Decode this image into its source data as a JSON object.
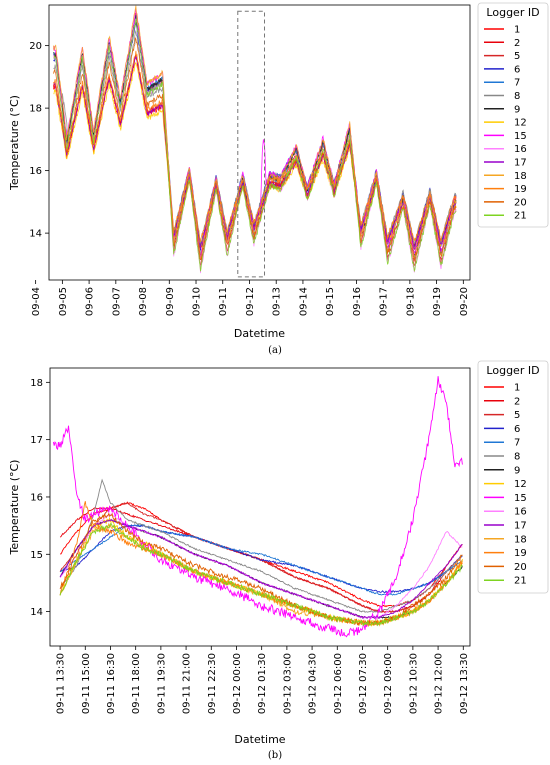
{
  "chart_data": [
    {
      "type": "line",
      "panel_label": "(a)",
      "xlabel": "Datetime",
      "ylabel": "Temperature (°C)",
      "legend_title": "Logger ID",
      "legend_position": "right",
      "grid": false,
      "x_ticks": [
        "09-04",
        "09-05",
        "09-06",
        "09-07",
        "09-08",
        "09-09",
        "09-10",
        "09-11",
        "09-12",
        "09-13",
        "09-14",
        "09-15",
        "09-16",
        "09-17",
        "09-18",
        "09-19",
        "09-20"
      ],
      "y_ticks": [
        14,
        16,
        18,
        20
      ],
      "xlim": [
        "09-04 12:00",
        "09-20 06:00"
      ],
      "ylim": [
        12.5,
        21.3
      ],
      "highlight_box": {
        "x_range": [
          "09-11 13:30",
          "09-12 13:30"
        ],
        "y_range": [
          12.6,
          21.1
        ],
        "style": "dashed"
      },
      "daily_extremes": {
        "dates": [
          "09-04 18:00",
          "09-05 04:00",
          "09-05 18:00",
          "09-06 04:00",
          "09-06 18:00",
          "09-07 04:00",
          "09-07 18:00",
          "09-08 04:00",
          "09-08 18:00",
          "09-09 04:00",
          "09-09 18:00",
          "09-10 04:00",
          "09-10 18:00",
          "09-11 04:00",
          "09-11 18:00",
          "09-12 04:00",
          "09-12 18:00",
          "09-13 04:00",
          "09-13 18:00",
          "09-14 04:00",
          "09-14 18:00",
          "09-15 04:00",
          "09-15 18:00",
          "09-16 04:00",
          "09-16 18:00",
          "09-17 04:00",
          "09-17 18:00",
          "09-18 04:00",
          "09-18 18:00",
          "09-19 04:00",
          "09-19 16:00"
        ],
        "values": [
          19.2,
          16.7,
          19.2,
          16.9,
          19.5,
          17.8,
          20.3,
          18.2,
          18.5,
          13.8,
          15.9,
          13.4,
          15.6,
          13.8,
          15.7,
          14.1,
          15.7,
          15.6,
          16.5,
          15.3,
          16.7,
          15.4,
          17.1,
          14.0,
          15.8,
          13.6,
          15.1,
          13.4,
          15.2,
          13.5,
          15.0
        ]
      },
      "series": [
        {
          "name": "1",
          "color": "#ff0000"
        },
        {
          "name": "2",
          "color": "#e8000b"
        },
        {
          "name": "5",
          "color": "#d62728"
        },
        {
          "name": "6",
          "color": "#2222cc"
        },
        {
          "name": "7",
          "color": "#1f77d4"
        },
        {
          "name": "8",
          "color": "#888888"
        },
        {
          "name": "9",
          "color": "#222222"
        },
        {
          "name": "12",
          "color": "#ffcc00"
        },
        {
          "name": "15",
          "color": "#ff00ff"
        },
        {
          "name": "16",
          "color": "#ff80ff"
        },
        {
          "name": "17",
          "color": "#9900cc"
        },
        {
          "name": "18",
          "color": "#f5a623"
        },
        {
          "name": "19",
          "color": "#ff7f0e"
        },
        {
          "name": "20",
          "color": "#e06000"
        },
        {
          "name": "21",
          "color": "#7ed321"
        }
      ]
    },
    {
      "type": "line",
      "panel_label": "(b)",
      "xlabel": "Datetime",
      "ylabel": "Temperature (°C)",
      "legend_title": "Logger ID",
      "legend_position": "right",
      "grid": false,
      "x_ticks": [
        "09-11 13:30",
        "09-11 15:00",
        "09-11 16:30",
        "09-11 18:00",
        "09-11 19:30",
        "09-11 21:00",
        "09-11 22:30",
        "09-12 00:00",
        "09-12 01:30",
        "09-12 03:00",
        "09-12 04:30",
        "09-12 06:00",
        "09-12 07:30",
        "09-12 09:00",
        "09-12 10:30",
        "09-12 12:00",
        "09-12 13:30"
      ],
      "y_ticks": [
        14,
        15,
        16,
        17,
        18
      ],
      "xlim_hours_from_0911_1330": [
        -0.6,
        24.4
      ],
      "ylim": [
        13.4,
        18.25
      ],
      "series": [
        {
          "name": "1",
          "color": "#ff0000",
          "hours": [
            0,
            1,
            2,
            3,
            4,
            5,
            6,
            8,
            10,
            12,
            14,
            16,
            18,
            19,
            20,
            21,
            22,
            23,
            24
          ],
          "values": [
            15.0,
            15.4,
            15.7,
            15.8,
            15.9,
            15.8,
            15.6,
            15.3,
            15.1,
            14.9,
            14.7,
            14.5,
            14.2,
            14.1,
            14.1,
            14.2,
            14.4,
            14.8,
            15.2
          ]
        },
        {
          "name": "2",
          "color": "#e8000b",
          "hours": [
            0,
            1,
            2,
            3,
            4,
            5,
            6,
            8,
            10,
            12,
            14,
            16,
            18,
            19,
            20,
            21,
            22,
            23,
            24
          ],
          "values": [
            15.3,
            15.6,
            15.8,
            15.8,
            15.7,
            15.6,
            15.5,
            15.3,
            15.1,
            14.9,
            14.6,
            14.4,
            14.1,
            14.0,
            14.0,
            14.1,
            14.3,
            14.7,
            15.0
          ]
        },
        {
          "name": "5",
          "color": "#d62728",
          "hours": [
            0,
            1,
            2,
            3,
            4,
            5,
            6,
            8,
            10,
            12,
            14,
            16,
            18,
            19,
            20,
            21,
            22,
            23,
            24
          ],
          "values": [
            14.7,
            15.1,
            15.5,
            15.8,
            15.9,
            15.7,
            15.6,
            15.3,
            15.1,
            14.9,
            14.6,
            14.4,
            14.1,
            14.0,
            14.0,
            14.1,
            14.3,
            14.8,
            15.2
          ]
        },
        {
          "name": "6",
          "color": "#2222cc",
          "hours": [
            0,
            1,
            2,
            3,
            4,
            5,
            6,
            8,
            10,
            12,
            14,
            16,
            18,
            19,
            20,
            21,
            22,
            23,
            24
          ],
          "values": [
            14.7,
            14.8,
            15.1,
            15.4,
            15.5,
            15.5,
            15.4,
            15.3,
            15.1,
            14.9,
            14.8,
            14.6,
            14.4,
            14.35,
            14.35,
            14.4,
            14.5,
            14.7,
            15.0
          ]
        },
        {
          "name": "7",
          "color": "#1f77d4",
          "hours": [
            0,
            1,
            2,
            3,
            4,
            5,
            6,
            8,
            10,
            12,
            14,
            16,
            18,
            19,
            20,
            21,
            22,
            23,
            24
          ],
          "values": [
            14.7,
            14.9,
            15.1,
            15.3,
            15.5,
            15.5,
            15.4,
            15.3,
            15.1,
            15.0,
            14.8,
            14.6,
            14.4,
            14.3,
            14.3,
            14.4,
            14.5,
            14.7,
            14.9
          ]
        },
        {
          "name": "8",
          "color": "#888888",
          "hours": [
            0,
            1,
            2,
            2.5,
            3,
            4,
            5,
            6,
            8,
            10,
            12,
            14,
            16,
            18,
            19,
            20,
            21,
            22,
            23,
            24
          ],
          "values": [
            14.4,
            14.8,
            15.7,
            16.3,
            15.9,
            15.6,
            15.5,
            15.4,
            15.1,
            14.9,
            14.7,
            14.4,
            14.2,
            14.0,
            14.0,
            14.1,
            14.2,
            14.4,
            14.7,
            15.0
          ]
        },
        {
          "name": "9",
          "color": "#222222",
          "hours": [
            0,
            1,
            2,
            3,
            4,
            5,
            6,
            8,
            10,
            12,
            14,
            16,
            18,
            19,
            20,
            21,
            22,
            23,
            24
          ],
          "values": [
            14.6,
            15.1,
            15.5,
            15.6,
            15.5,
            15.4,
            15.3,
            15.0,
            14.8,
            14.5,
            14.3,
            14.1,
            13.9,
            13.9,
            13.9,
            14.0,
            14.2,
            14.5,
            14.8
          ]
        },
        {
          "name": "12",
          "color": "#ffcc00",
          "hours": [
            0,
            1,
            2,
            3,
            4,
            5,
            6,
            8,
            10,
            12,
            14,
            16,
            18,
            19,
            20,
            21,
            22,
            23,
            24
          ],
          "values": [
            14.3,
            14.9,
            15.5,
            15.6,
            15.3,
            15.2,
            15.0,
            14.7,
            14.5,
            14.3,
            14.1,
            13.9,
            13.8,
            13.8,
            13.9,
            14.0,
            14.2,
            14.5,
            14.9
          ]
        },
        {
          "name": "15",
          "color": "#ff00ff",
          "hours": [
            -0.4,
            0,
            0.5,
            1,
            1.5,
            2,
            3,
            4,
            5,
            6,
            8,
            10,
            12,
            14,
            16,
            17,
            18,
            19,
            20,
            21,
            22,
            22.5,
            23,
            23.5,
            24
          ],
          "values": [
            16.9,
            16.9,
            17.2,
            16.0,
            15.6,
            15.7,
            15.8,
            15.5,
            15.2,
            14.9,
            14.6,
            14.4,
            14.1,
            13.9,
            13.7,
            13.6,
            13.7,
            14.0,
            14.6,
            15.6,
            17.1,
            18.05,
            17.6,
            16.6,
            16.6
          ]
        },
        {
          "name": "16",
          "color": "#ff80ff",
          "hours": [
            0,
            1,
            2,
            3,
            4,
            5,
            6,
            8,
            10,
            12,
            14,
            16,
            18,
            19,
            20,
            21,
            22,
            23,
            24
          ],
          "values": [
            14.6,
            15.0,
            15.5,
            15.7,
            15.5,
            15.4,
            15.3,
            15.0,
            14.8,
            14.5,
            14.3,
            14.1,
            13.9,
            13.9,
            14.1,
            14.4,
            14.8,
            15.4,
            15.1
          ]
        },
        {
          "name": "17",
          "color": "#9900cc",
          "hours": [
            0,
            1,
            2,
            3,
            4,
            5,
            6,
            8,
            10,
            12,
            14,
            16,
            18,
            19,
            20,
            21,
            22,
            23,
            24
          ],
          "values": [
            14.6,
            15.1,
            15.5,
            15.6,
            15.5,
            15.4,
            15.3,
            15.0,
            14.8,
            14.5,
            14.3,
            14.1,
            13.9,
            13.9,
            14.0,
            14.2,
            14.5,
            14.8,
            15.2
          ]
        },
        {
          "name": "18",
          "color": "#f5a623",
          "hours": [
            0,
            1,
            2,
            3,
            4,
            5,
            6,
            8,
            10,
            12,
            14,
            16,
            18,
            19,
            20,
            21,
            22,
            23,
            24
          ],
          "values": [
            14.3,
            14.9,
            15.4,
            15.5,
            15.3,
            15.1,
            15.0,
            14.7,
            14.5,
            14.3,
            14.0,
            13.9,
            13.8,
            13.8,
            13.9,
            14.0,
            14.2,
            14.5,
            14.9
          ]
        },
        {
          "name": "19",
          "color": "#ff7f0e",
          "hours": [
            0,
            1,
            1.5,
            2,
            3,
            4,
            5,
            6,
            8,
            10,
            12,
            14,
            16,
            18,
            19,
            20,
            21,
            22,
            23,
            24
          ],
          "values": [
            14.3,
            15.2,
            15.9,
            15.5,
            15.4,
            15.2,
            15.1,
            15.0,
            14.7,
            14.5,
            14.3,
            14.1,
            13.9,
            13.8,
            13.8,
            13.9,
            14.0,
            14.2,
            14.5,
            14.9
          ]
        },
        {
          "name": "20",
          "color": "#e06000",
          "hours": [
            0,
            1,
            2,
            3,
            4,
            5,
            6,
            8,
            10,
            12,
            14,
            16,
            18,
            19,
            20,
            21,
            22,
            23,
            24
          ],
          "values": [
            14.4,
            15.0,
            15.6,
            15.7,
            15.4,
            15.2,
            15.1,
            14.8,
            14.6,
            14.4,
            14.1,
            13.9,
            13.8,
            13.8,
            13.9,
            14.1,
            14.3,
            14.6,
            15.0
          ]
        },
        {
          "name": "21",
          "color": "#7ed321",
          "hours": [
            0,
            1,
            2,
            3,
            4,
            5,
            6,
            8,
            10,
            12,
            14,
            16,
            18,
            19,
            20,
            21,
            22,
            23,
            24
          ],
          "values": [
            14.3,
            14.9,
            15.4,
            15.5,
            15.3,
            15.1,
            15.0,
            14.7,
            14.5,
            14.3,
            14.1,
            13.9,
            13.8,
            13.8,
            13.9,
            14.0,
            14.2,
            14.5,
            14.8
          ]
        }
      ]
    }
  ]
}
